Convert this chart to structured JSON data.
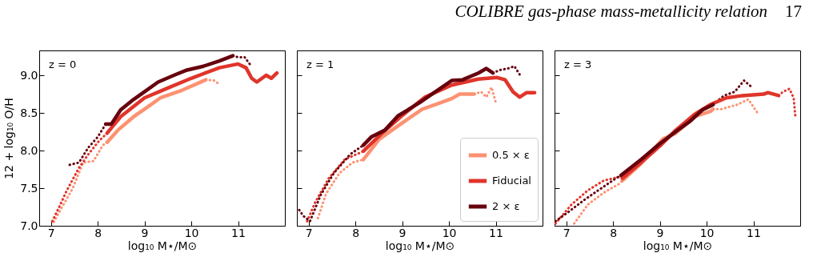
{
  "chart_data": [
    {
      "type": "line",
      "xlabel": "log₁₀ M⋆/M⊙",
      "ylabel": "12 + log₁₀ O/H",
      "annotations": [
        "z = 0",
        "COLIBRE gas-phase mass-metallicity relation",
        "17"
      ],
      "xlim": [
        6.75,
        12.0
      ],
      "ylim": [
        7.0,
        9.33
      ],
      "xticks": [
        7,
        8,
        9,
        10,
        11
      ],
      "yticks": [
        {
          "value": 7,
          "label": "7.0"
        },
        {
          "value": 7.5,
          "label": "7.5"
        },
        {
          "value": 8,
          "label": "8.0"
        },
        {
          "value": 8.5,
          "label": "8.5"
        },
        {
          "value": 9,
          "label": "9.0"
        }
      ],
      "series": [
        {
          "color": "#fc9272",
          "line_style": "dotted",
          "x": [
            7.06,
            7.23,
            7.46,
            7.69,
            7.91,
            8.11,
            8.2
          ],
          "values": [
            7.05,
            7.24,
            7.49,
            7.84,
            7.86,
            8.07,
            8.11
          ]
        },
        {
          "color": "#e0352b",
          "line_style": "dotted",
          "x": [
            7.03,
            7.17,
            7.34,
            7.6,
            7.8,
            8.03,
            8.2
          ],
          "values": [
            7.06,
            7.24,
            7.47,
            7.77,
            7.95,
            8.13,
            8.23
          ]
        },
        {
          "color": "#67000d",
          "line_style": "dotted",
          "x": [
            7.4,
            7.6,
            7.8,
            8.0,
            8.17
          ],
          "values": [
            7.81,
            7.84,
            8.04,
            8.18,
            8.35
          ]
        },
        {
          "color": "#fc9272",
          "line_style": "dotted",
          "x": [
            10.31,
            10.49,
            10.6
          ],
          "values": [
            8.94,
            8.93,
            8.88
          ]
        },
        {
          "color": "#67000d",
          "line_style": "dotted",
          "x": [
            10.89,
            11.0,
            11.14,
            11.26
          ],
          "values": [
            9.26,
            9.24,
            9.24,
            9.14
          ]
        },
        {
          "color": "#fc9272",
          "x": [
            8.2,
            8.43,
            8.77,
            9.0,
            9.34,
            9.8,
            10.31
          ],
          "values": [
            8.11,
            8.27,
            8.45,
            8.55,
            8.7,
            8.8,
            8.94
          ]
        },
        {
          "color": "#e0352b",
          "x": [
            8.2,
            8.49,
            9.0,
            9.46,
            10.0,
            10.6,
            11.0,
            11.17,
            11.29,
            11.4,
            11.6,
            11.71,
            11.83
          ],
          "values": [
            8.23,
            8.45,
            8.7,
            8.82,
            8.96,
            9.1,
            9.15,
            9.1,
            8.96,
            8.91,
            9.0,
            8.96,
            9.03
          ]
        },
        {
          "color": "#67000d",
          "x": [
            8.17,
            8.29,
            8.49,
            8.77,
            9.0,
            9.29,
            9.63,
            9.91,
            10.26,
            10.6,
            10.89
          ],
          "values": [
            8.35,
            8.35,
            8.54,
            8.68,
            8.78,
            8.91,
            9.0,
            9.07,
            9.12,
            9.19,
            9.26
          ]
        }
      ]
    },
    {
      "type": "line",
      "xlabel": "log₁₀ M⋆/M⊙",
      "annotations": [
        "z = 1"
      ],
      "tick_labels": "x",
      "legend": "bottom right",
      "xlim": [
        6.75,
        12.0
      ],
      "ylim": [
        7.0,
        9.33
      ],
      "xticks": [
        7,
        8,
        9,
        10,
        11
      ],
      "yticks": [
        7,
        7.5,
        8,
        8.5,
        9
      ],
      "series": [
        {
          "color": "#fc9272",
          "line_style": "dotted",
          "x": [
            7.2,
            7.37,
            7.66,
            7.94,
            8.17
          ],
          "values": [
            7.1,
            7.42,
            7.7,
            7.84,
            7.88
          ]
        },
        {
          "color": "#e0352b",
          "line_style": "dotted",
          "x": [
            6.97,
            7.14,
            7.43,
            7.77,
            8.17
          ],
          "values": [
            7.06,
            7.31,
            7.63,
            7.88,
            7.99
          ]
        },
        {
          "color": "#67000d",
          "line_style": "dotted",
          "x": [
            6.8,
            6.89,
            7.03,
            7.26,
            7.54,
            7.89,
            8.17
          ],
          "values": [
            7.21,
            7.13,
            7.06,
            7.41,
            7.7,
            7.95,
            8.07
          ]
        },
        {
          "color": "#fc9272",
          "line_style": "dotted",
          "x": [
            10.54,
            10.69,
            10.8,
            10.91,
            11.0
          ],
          "values": [
            8.75,
            8.78,
            8.71,
            8.84,
            8.64
          ]
        },
        {
          "color": "#67000d",
          "line_style": "dotted",
          "x": [
            10.94,
            11.09,
            11.26,
            11.4,
            11.51
          ],
          "values": [
            9.03,
            9.07,
            9.09,
            9.12,
            9.01
          ]
        },
        {
          "name": "0.5 × ε",
          "color": "#fc9272",
          "x": [
            8.17,
            8.51,
            9.03,
            9.43,
            9.71,
            10.06,
            10.23,
            10.54
          ],
          "values": [
            7.88,
            8.15,
            8.38,
            8.55,
            8.61,
            8.69,
            8.75,
            8.75
          ]
        },
        {
          "name": "Fiducial",
          "color": "#e0352b",
          "x": [
            8.17,
            8.57,
            9.03,
            9.49,
            10.06,
            10.63,
            11.03,
            11.2,
            11.37,
            11.51,
            11.66,
            11.83
          ],
          "values": [
            7.99,
            8.23,
            8.48,
            8.71,
            8.87,
            8.95,
            8.97,
            8.94,
            8.78,
            8.71,
            8.77,
            8.77
          ]
        },
        {
          "name": "2 × ε",
          "color": "#67000d",
          "x": [
            8.17,
            8.34,
            8.63,
            8.91,
            9.2,
            9.43,
            9.71,
            10.06,
            10.29,
            10.63,
            10.8,
            10.94
          ],
          "values": [
            8.07,
            8.18,
            8.27,
            8.46,
            8.57,
            8.66,
            8.78,
            8.93,
            8.94,
            9.03,
            9.09,
            9.03
          ]
        }
      ]
    },
    {
      "type": "line",
      "xlabel": "log₁₀ M⋆/M⊙",
      "annotations": [
        "z = 3"
      ],
      "tick_labels": "x",
      "xlim": [
        6.75,
        12.0
      ],
      "ylim": [
        7.0,
        9.33
      ],
      "xticks": [
        7,
        8,
        9,
        10,
        11
      ],
      "yticks": [
        7,
        7.5,
        8,
        8.5,
        9
      ],
      "series": [
        {
          "color": "#fc9272",
          "line_style": "dotted",
          "x": [
            7.17,
            7.46,
            7.8,
            8.14,
            8.2
          ],
          "values": [
            7.03,
            7.28,
            7.44,
            7.56,
            7.6
          ]
        },
        {
          "color": "#e0352b",
          "line_style": "dotted",
          "x": [
            6.77,
            7.11,
            7.46,
            7.8,
            8.14,
            8.2
          ],
          "values": [
            7.03,
            7.28,
            7.47,
            7.6,
            7.65,
            7.63
          ]
        },
        {
          "color": "#67000d",
          "line_style": "dotted",
          "x": [
            6.77,
            7.06,
            7.4,
            7.8,
            8.11,
            8.17
          ],
          "values": [
            7.06,
            7.19,
            7.35,
            7.52,
            7.65,
            7.67
          ]
        },
        {
          "color": "#fc9272",
          "line_style": "dotted",
          "x": [
            10.14,
            10.31,
            10.66,
            10.89,
            11.11
          ],
          "values": [
            8.55,
            8.55,
            8.61,
            8.68,
            8.48
          ]
        },
        {
          "color": "#67000d",
          "line_style": "dotted",
          "x": [
            10.14,
            10.37,
            10.6,
            10.8,
            10.97
          ],
          "values": [
            8.61,
            8.73,
            8.78,
            8.93,
            8.84
          ]
        },
        {
          "color": "#e0352b",
          "line_style": "dotted",
          "x": [
            11.54,
            11.63,
            11.77,
            11.86,
            11.9
          ],
          "values": [
            8.73,
            8.78,
            8.82,
            8.7,
            8.43
          ]
        },
        {
          "color": "#fc9272",
          "x": [
            8.2,
            8.6,
            9.06,
            9.34,
            9.74,
            10.08,
            10.14
          ],
          "values": [
            7.6,
            7.83,
            8.15,
            8.23,
            8.45,
            8.52,
            8.55
          ]
        },
        {
          "color": "#e0352b",
          "x": [
            8.2,
            8.6,
            9.0,
            9.34,
            9.74,
            10.08,
            10.42,
            10.77,
            11.22,
            11.31,
            11.54
          ],
          "values": [
            7.63,
            7.84,
            8.06,
            8.27,
            8.48,
            8.61,
            8.7,
            8.73,
            8.75,
            8.77,
            8.73
          ]
        },
        {
          "color": "#67000d",
          "x": [
            8.17,
            8.6,
            9.0,
            9.34,
            9.63,
            9.91,
            10.14
          ],
          "values": [
            7.67,
            7.88,
            8.09,
            8.25,
            8.38,
            8.54,
            8.61
          ]
        }
      ]
    }
  ]
}
